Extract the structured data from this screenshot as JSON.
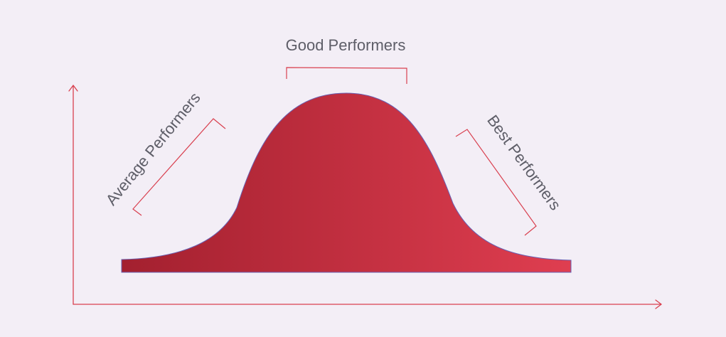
{
  "diagram": {
    "labels": {
      "average": "Average Performers",
      "good": "Good Performers",
      "best": "Best Performers"
    },
    "colors": {
      "background": "#f3eef6",
      "axis": "#d9404f",
      "bracket": "#d9404f",
      "curve_fill_start": "#a3202f",
      "curve_fill_end": "#df3e50",
      "curve_outline": "#6a5fb0",
      "label_text": "#5e5e68"
    }
  }
}
